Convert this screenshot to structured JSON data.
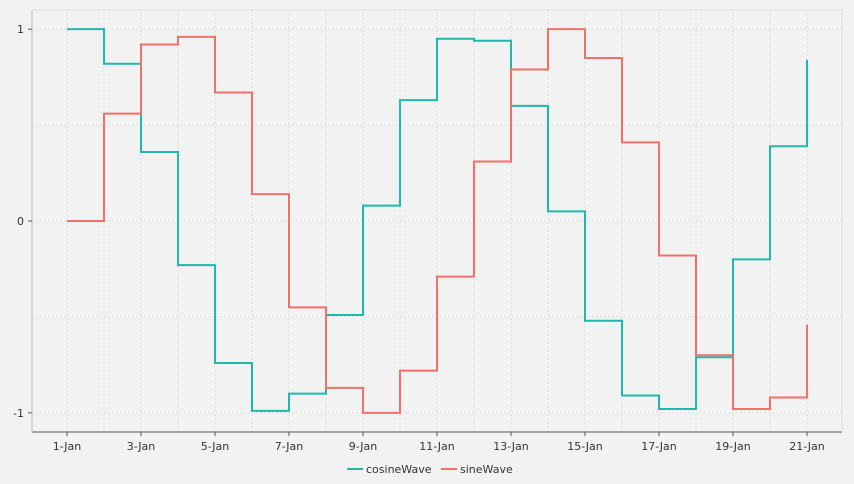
{
  "chart_data": {
    "type": "line",
    "step": "post",
    "x": [
      "1-Jan",
      "2-Jan",
      "3-Jan",
      "4-Jan",
      "5-Jan",
      "6-Jan",
      "7-Jan",
      "8-Jan",
      "9-Jan",
      "10-Jan",
      "11-Jan",
      "12-Jan",
      "13-Jan",
      "14-Jan",
      "15-Jan",
      "16-Jan",
      "17-Jan",
      "18-Jan",
      "19-Jan",
      "20-Jan",
      "21-Jan"
    ],
    "x_tick_labels": [
      "1-Jan",
      "3-Jan",
      "5-Jan",
      "7-Jan",
      "9-Jan",
      "11-Jan",
      "13-Jan",
      "15-Jan",
      "17-Jan",
      "19-Jan",
      "21-Jan"
    ],
    "y_tick_values": [
      -1,
      0,
      1
    ],
    "y_tick_labels": [
      "-1",
      "0",
      "1"
    ],
    "ylim": [
      -1.1,
      1.1
    ],
    "grid": true,
    "legend_position": "bottom",
    "series": [
      {
        "name": "cosineWave",
        "color": "#1fb9a9",
        "values": [
          1.0,
          0.82,
          0.36,
          -0.23,
          -0.74,
          -0.99,
          -0.9,
          -0.49,
          0.08,
          0.63,
          0.95,
          0.94,
          0.6,
          0.05,
          -0.52,
          -0.91,
          -0.98,
          -0.71,
          -0.2,
          0.39,
          0.84
        ]
      },
      {
        "name": "sineWave",
        "color": "#f3706a",
        "values": [
          0.0,
          0.56,
          0.92,
          0.96,
          0.67,
          0.14,
          -0.45,
          -0.87,
          -1.0,
          -0.78,
          -0.29,
          0.31,
          0.79,
          1.0,
          0.85,
          0.41,
          -0.18,
          -0.7,
          -0.98,
          -0.92,
          -0.54
        ]
      }
    ]
  }
}
